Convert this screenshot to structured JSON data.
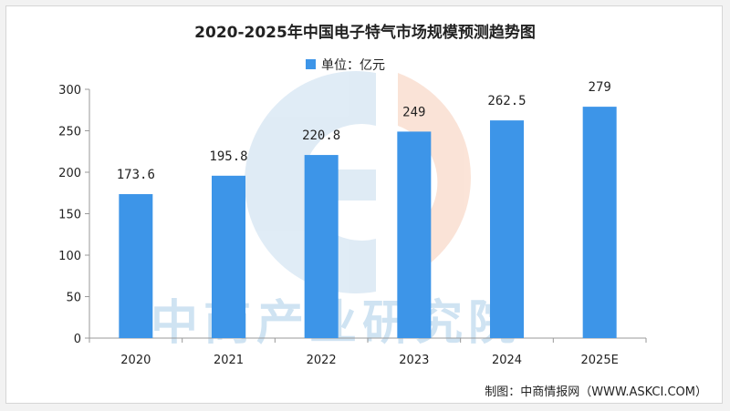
{
  "chart_data": {
    "type": "bar",
    "title": "2020-2025年中国电子特气市场规模预测趋势图",
    "legend": {
      "label": "单位：亿元",
      "color": "#3d95e8",
      "position": "top-center"
    },
    "categories": [
      "2020",
      "2021",
      "2022",
      "2023",
      "2024",
      "2025E"
    ],
    "series": [
      {
        "values": [
          173.6,
          195.8,
          220.8,
          249,
          262.5,
          279
        ]
      }
    ],
    "data_labels": [
      "173.6",
      "195.8",
      "220.8",
      "249",
      "262.5",
      "279"
    ],
    "ylim": [
      0,
      300
    ],
    "yticks": [
      0,
      50,
      100,
      150,
      200,
      250,
      300
    ],
    "grid": false,
    "bar_color": "#3d95e8"
  },
  "source": "制图：中商情报网（WWW.ASKCI.COM）",
  "watermark": {
    "text": "中商产业研究院"
  }
}
